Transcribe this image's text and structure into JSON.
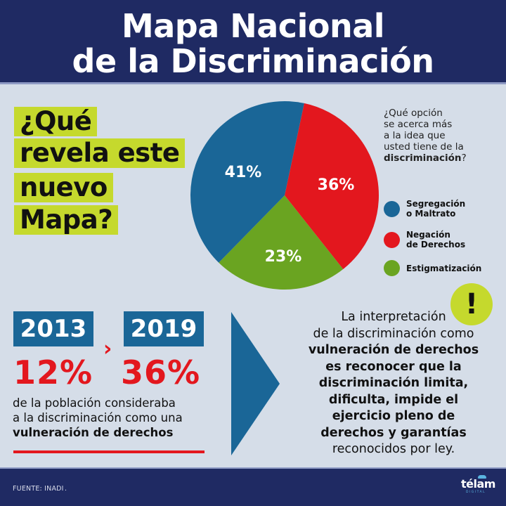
{
  "header": {
    "title_line1": "Mapa Nacional",
    "title_line2": "de la Discriminación",
    "background": "#1f2a63"
  },
  "callout": {
    "lines": [
      "¿Qué",
      "revela este",
      "nuevo",
      "Mapa?"
    ],
    "highlight_color": "#c5d92d"
  },
  "survey": {
    "question_lines": [
      "¿Qué opción",
      "se acerca más",
      "a la idea que",
      "usted tiene de la"
    ],
    "question_bold": "discriminación",
    "question_end": "?"
  },
  "chart_data": {
    "type": "pie",
    "title": "¿Qué opción se acerca más a la idea que usted tiene de la discriminación?",
    "categories": [
      "Segregación o Maltrato",
      "Negación de Derechos",
      "Estigmatización"
    ],
    "values": [
      41,
      36,
      23
    ],
    "labels": [
      "41%",
      "36%",
      "23%"
    ],
    "colors": [
      "#1a6697",
      "#e3171e",
      "#6aa421"
    ],
    "legend_position": "right",
    "legend": [
      {
        "line1": "Segregación",
        "line2": "o Maltrato",
        "color": "#1a6697"
      },
      {
        "line1": "Negación",
        "line2": "de Derechos",
        "color": "#e3171e"
      },
      {
        "line1": "Estigmatización",
        "line2": "",
        "color": "#6aa421"
      }
    ]
  },
  "comparison": {
    "year_from": "2013",
    "year_to": "2019",
    "arrow": "›",
    "pct_from": "12%",
    "pct_to": "36%",
    "description_line1": "de la población consideraba",
    "description_line2": "a la discriminación como una",
    "description_bold": "vulneración de derechos"
  },
  "interpretation": {
    "icon": "!",
    "line1": "La interpretación",
    "line2": "de la discriminación como",
    "bold_lines": [
      "vulneración de derechos",
      "es reconocer que la",
      "discriminación limita,",
      "dificulta, impide el",
      "ejercicio pleno de",
      "derechos y garantías"
    ],
    "last_line": "reconocidos por ley."
  },
  "footer": {
    "source": "FUENTE: INADI",
    "source_dot": ".",
    "logo": "télam",
    "logo_sub": "DIGITAL"
  }
}
